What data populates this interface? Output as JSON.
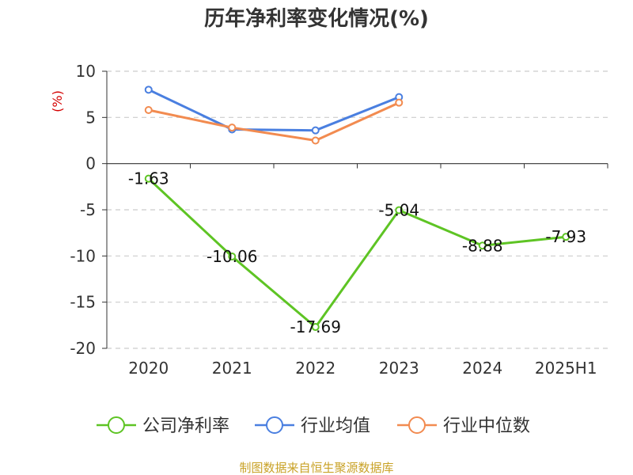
{
  "chart_data": {
    "type": "line",
    "title": "历年净利率变化情况(%)",
    "ylabel": "(%)",
    "categories": [
      "2020",
      "2021",
      "2022",
      "2023",
      "2024",
      "2025H1"
    ],
    "ylim": [
      -20,
      10
    ],
    "yticks": [
      10,
      5,
      0,
      -5,
      -10,
      -15,
      -20
    ],
    "grid": true,
    "legend_position": "bottom",
    "series": [
      {
        "name": "公司净利率",
        "color": "#5ec424",
        "values": [
          -1.63,
          -10.06,
          -17.69,
          -5.04,
          -8.88,
          -7.93
        ],
        "labels": [
          "-1.63",
          "-10.06",
          "-17.69",
          "-5.04",
          "-8.88",
          "-7.93"
        ]
      },
      {
        "name": "行业均值",
        "color": "#4a7fe0",
        "values": [
          8.0,
          3.7,
          3.6,
          7.2,
          null,
          null
        ]
      },
      {
        "name": "行业中位数",
        "color": "#f28b50",
        "values": [
          5.8,
          3.9,
          2.5,
          6.6,
          null,
          null
        ]
      }
    ]
  },
  "source": "制图数据来自恒生聚源数据库"
}
